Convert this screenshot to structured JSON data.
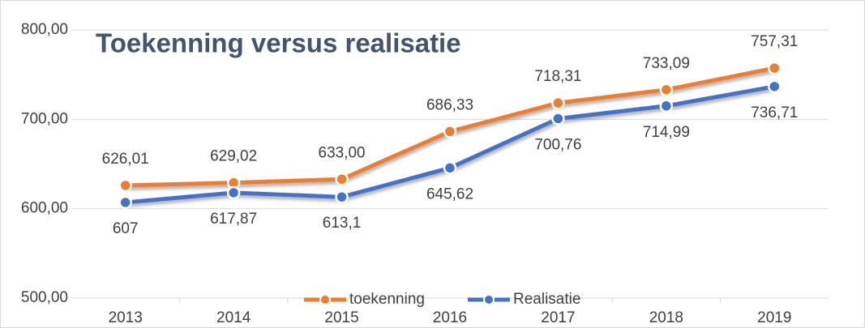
{
  "chart_data": {
    "type": "line",
    "title": "Toekenning versus realisatie",
    "categories": [
      "2013",
      "2014",
      "2015",
      "2016",
      "2017",
      "2018",
      "2019"
    ],
    "series": [
      {
        "name": "toekenning",
        "color": "#ed7d31",
        "values": [
          626.01,
          629.02,
          633.0,
          686.33,
          718.31,
          733.09,
          757.31
        ],
        "value_labels": [
          "626,01",
          "629,02",
          "633,00",
          "686,33",
          "718,31",
          "733,09",
          "757,31"
        ]
      },
      {
        "name": "Realisatie",
        "color": "#4472c4",
        "values": [
          607,
          617.87,
          613.1,
          645.62,
          700.76,
          714.99,
          736.71
        ],
        "value_labels": [
          "607",
          "617,87",
          "613,1",
          "645,62",
          "700,76",
          "714,99",
          "736,71"
        ]
      }
    ],
    "ylim": [
      500,
      800
    ],
    "yticks": [
      {
        "value": 500,
        "label": "500,00"
      },
      {
        "value": 600,
        "label": "600,00"
      },
      {
        "value": 700,
        "label": "700,00"
      },
      {
        "value": 800,
        "label": "800,00"
      }
    ],
    "grid": true,
    "legend": "bottom"
  }
}
